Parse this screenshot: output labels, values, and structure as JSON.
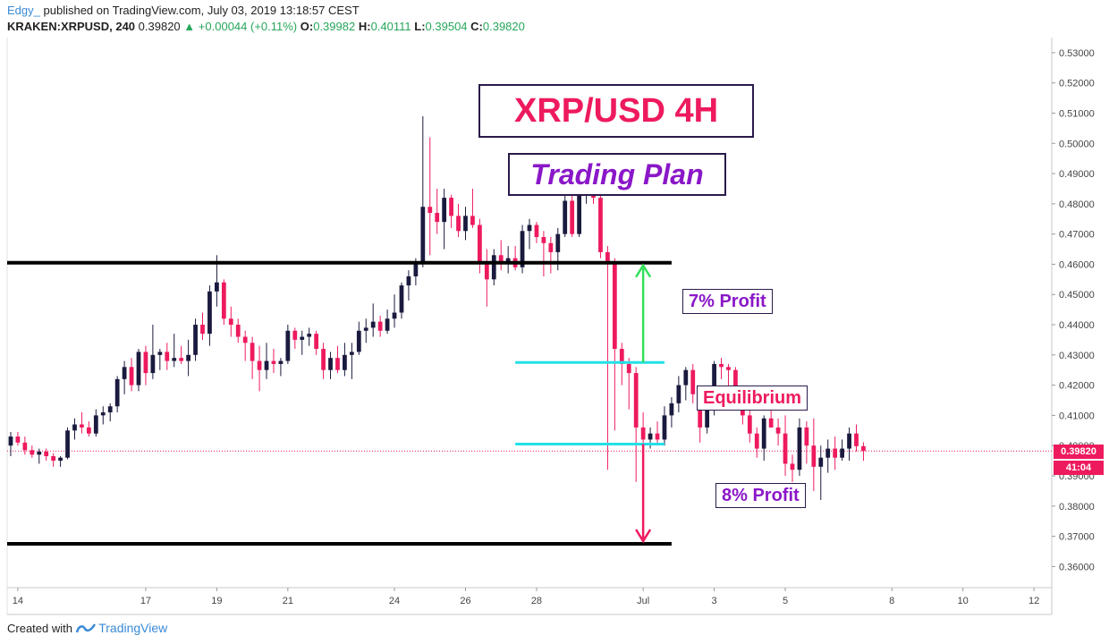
{
  "header": {
    "author": "Edgy_",
    "published": "published on TradingView.com, July 03, 2019 13:18:57 CEST",
    "symbol": "KRAKEN:XRPUSD, 240",
    "last": "0.39820",
    "change": "+0.00044 (+0.11%)",
    "o_label": "O:",
    "o": "0.39982",
    "h_label": "H:",
    "h": "0.40111",
    "l_label": "L:",
    "l": "0.39504",
    "c_label": "C:",
    "c": "0.39820"
  },
  "footer": {
    "created_with": "Created with",
    "brand": "TradingView"
  },
  "annotations": {
    "title": "XRP/USD 4H",
    "subtitle": "Trading Plan",
    "profit_top": "7% Profit",
    "equilibrium": "Equilibrium",
    "profit_bottom": "8% Profit"
  },
  "price_tag": {
    "price": "0.39820",
    "countdown": "41:04"
  },
  "colors": {
    "up_candle": "#1a1a3e",
    "down_candle": "#ee1a5e",
    "support_resistance": "#000000",
    "range_line": "#22e0e8",
    "target_up_arrow": "#33e05a",
    "target_down_arrow": "#ee1a5e"
  },
  "chart_data": {
    "type": "candlestick",
    "ylim": [
      0.353,
      0.535
    ],
    "y_ticks": [
      "0.36000",
      "0.37000",
      "0.38000",
      "0.39000",
      "0.40000",
      "0.41000",
      "0.42000",
      "0.43000",
      "0.44000",
      "0.45000",
      "0.46000",
      "0.47000",
      "0.48000",
      "0.49000",
      "0.50000",
      "0.51000",
      "0.52000",
      "0.53000"
    ],
    "x_ticks": [
      {
        "label": "14",
        "i": 1
      },
      {
        "label": "17",
        "i": 19
      },
      {
        "label": "19",
        "i": 29
      },
      {
        "label": "21",
        "i": 39
      },
      {
        "label": "24",
        "i": 54
      },
      {
        "label": "26",
        "i": 64
      },
      {
        "label": "28",
        "i": 74
      },
      {
        "label": "Jul",
        "i": 89
      },
      {
        "label": "3",
        "i": 99
      },
      {
        "label": "5",
        "i": 109
      },
      {
        "label": "8",
        "i": 124
      },
      {
        "label": "10",
        "i": 134
      },
      {
        "label": "12",
        "i": 144
      }
    ],
    "n_slots": 147,
    "levels": [
      {
        "name": "resistance",
        "y": 0.4605,
        "from_i": 0,
        "to_i": 93
      },
      {
        "name": "support",
        "y": 0.3675,
        "from_i": 0,
        "to_i": 93
      }
    ],
    "ranges": [
      {
        "name": "range-top",
        "y": 0.4275,
        "from_i": 71,
        "to_i": 92
      },
      {
        "name": "range-bottom",
        "y": 0.4005,
        "from_i": 71,
        "to_i": 92
      }
    ],
    "current_price": 0.3982,
    "candles": [
      {
        "o": 0.4,
        "h": 0.4045,
        "l": 0.3965,
        "c": 0.403
      },
      {
        "o": 0.403,
        "h": 0.4045,
        "l": 0.4,
        "c": 0.401
      },
      {
        "o": 0.401,
        "h": 0.403,
        "l": 0.397,
        "c": 0.3985
      },
      {
        "o": 0.3985,
        "h": 0.4,
        "l": 0.396,
        "c": 0.397
      },
      {
        "o": 0.397,
        "h": 0.399,
        "l": 0.394,
        "c": 0.398
      },
      {
        "o": 0.398,
        "h": 0.399,
        "l": 0.395,
        "c": 0.3965
      },
      {
        "o": 0.3965,
        "h": 0.3975,
        "l": 0.393,
        "c": 0.395
      },
      {
        "o": 0.395,
        "h": 0.3965,
        "l": 0.393,
        "c": 0.396
      },
      {
        "o": 0.396,
        "h": 0.406,
        "l": 0.3955,
        "c": 0.405
      },
      {
        "o": 0.405,
        "h": 0.409,
        "l": 0.402,
        "c": 0.407
      },
      {
        "o": 0.407,
        "h": 0.411,
        "l": 0.404,
        "c": 0.406
      },
      {
        "o": 0.406,
        "h": 0.408,
        "l": 0.403,
        "c": 0.404
      },
      {
        "o": 0.404,
        "h": 0.412,
        "l": 0.403,
        "c": 0.41
      },
      {
        "o": 0.41,
        "h": 0.413,
        "l": 0.407,
        "c": 0.411
      },
      {
        "o": 0.411,
        "h": 0.414,
        "l": 0.408,
        "c": 0.413
      },
      {
        "o": 0.413,
        "h": 0.423,
        "l": 0.411,
        "c": 0.422
      },
      {
        "o": 0.422,
        "h": 0.428,
        "l": 0.417,
        "c": 0.426
      },
      {
        "o": 0.426,
        "h": 0.429,
        "l": 0.418,
        "c": 0.42
      },
      {
        "o": 0.42,
        "h": 0.432,
        "l": 0.418,
        "c": 0.431
      },
      {
        "o": 0.431,
        "h": 0.433,
        "l": 0.42,
        "c": 0.424
      },
      {
        "o": 0.424,
        "h": 0.44,
        "l": 0.422,
        "c": 0.43
      },
      {
        "o": 0.43,
        "h": 0.432,
        "l": 0.425,
        "c": 0.431
      },
      {
        "o": 0.431,
        "h": 0.434,
        "l": 0.425,
        "c": 0.428
      },
      {
        "o": 0.428,
        "h": 0.437,
        "l": 0.426,
        "c": 0.429
      },
      {
        "o": 0.429,
        "h": 0.433,
        "l": 0.427,
        "c": 0.428
      },
      {
        "o": 0.428,
        "h": 0.435,
        "l": 0.423,
        "c": 0.43
      },
      {
        "o": 0.43,
        "h": 0.442,
        "l": 0.428,
        "c": 0.44
      },
      {
        "o": 0.44,
        "h": 0.444,
        "l": 0.435,
        "c": 0.437
      },
      {
        "o": 0.437,
        "h": 0.453,
        "l": 0.433,
        "c": 0.451
      },
      {
        "o": 0.451,
        "h": 0.463,
        "l": 0.446,
        "c": 0.454
      },
      {
        "o": 0.454,
        "h": 0.455,
        "l": 0.44,
        "c": 0.442
      },
      {
        "o": 0.442,
        "h": 0.446,
        "l": 0.436,
        "c": 0.44
      },
      {
        "o": 0.44,
        "h": 0.442,
        "l": 0.434,
        "c": 0.436
      },
      {
        "o": 0.436,
        "h": 0.438,
        "l": 0.428,
        "c": 0.434
      },
      {
        "o": 0.434,
        "h": 0.436,
        "l": 0.422,
        "c": 0.428
      },
      {
        "o": 0.428,
        "h": 0.433,
        "l": 0.418,
        "c": 0.425
      },
      {
        "o": 0.425,
        "h": 0.434,
        "l": 0.422,
        "c": 0.428
      },
      {
        "o": 0.428,
        "h": 0.432,
        "l": 0.424,
        "c": 0.427
      },
      {
        "o": 0.427,
        "h": 0.429,
        "l": 0.423,
        "c": 0.428
      },
      {
        "o": 0.428,
        "h": 0.44,
        "l": 0.427,
        "c": 0.438
      },
      {
        "o": 0.438,
        "h": 0.439,
        "l": 0.432,
        "c": 0.435
      },
      {
        "o": 0.435,
        "h": 0.438,
        "l": 0.43,
        "c": 0.436
      },
      {
        "o": 0.436,
        "h": 0.439,
        "l": 0.433,
        "c": 0.437
      },
      {
        "o": 0.437,
        "h": 0.438,
        "l": 0.43,
        "c": 0.432
      },
      {
        "o": 0.432,
        "h": 0.434,
        "l": 0.422,
        "c": 0.425
      },
      {
        "o": 0.425,
        "h": 0.431,
        "l": 0.422,
        "c": 0.429
      },
      {
        "o": 0.429,
        "h": 0.433,
        "l": 0.424,
        "c": 0.425
      },
      {
        "o": 0.425,
        "h": 0.434,
        "l": 0.423,
        "c": 0.43
      },
      {
        "o": 0.43,
        "h": 0.434,
        "l": 0.422,
        "c": 0.431
      },
      {
        "o": 0.431,
        "h": 0.441,
        "l": 0.43,
        "c": 0.438
      },
      {
        "o": 0.438,
        "h": 0.442,
        "l": 0.434,
        "c": 0.439
      },
      {
        "o": 0.439,
        "h": 0.447,
        "l": 0.436,
        "c": 0.441
      },
      {
        "o": 0.441,
        "h": 0.443,
        "l": 0.436,
        "c": 0.438
      },
      {
        "o": 0.438,
        "h": 0.445,
        "l": 0.437,
        "c": 0.442
      },
      {
        "o": 0.442,
        "h": 0.45,
        "l": 0.439,
        "c": 0.444
      },
      {
        "o": 0.444,
        "h": 0.454,
        "l": 0.442,
        "c": 0.453
      },
      {
        "o": 0.453,
        "h": 0.458,
        "l": 0.448,
        "c": 0.456
      },
      {
        "o": 0.456,
        "h": 0.462,
        "l": 0.453,
        "c": 0.46
      },
      {
        "o": 0.46,
        "h": 0.509,
        "l": 0.459,
        "c": 0.479
      },
      {
        "o": 0.479,
        "h": 0.502,
        "l": 0.463,
        "c": 0.477
      },
      {
        "o": 0.477,
        "h": 0.485,
        "l": 0.47,
        "c": 0.474
      },
      {
        "o": 0.474,
        "h": 0.485,
        "l": 0.465,
        "c": 0.482
      },
      {
        "o": 0.482,
        "h": 0.483,
        "l": 0.472,
        "c": 0.476
      },
      {
        "o": 0.476,
        "h": 0.48,
        "l": 0.469,
        "c": 0.471
      },
      {
        "o": 0.471,
        "h": 0.479,
        "l": 0.468,
        "c": 0.476
      },
      {
        "o": 0.476,
        "h": 0.485,
        "l": 0.472,
        "c": 0.473
      },
      {
        "o": 0.473,
        "h": 0.475,
        "l": 0.457,
        "c": 0.46
      },
      {
        "o": 0.46,
        "h": 0.465,
        "l": 0.446,
        "c": 0.455
      },
      {
        "o": 0.455,
        "h": 0.465,
        "l": 0.453,
        "c": 0.463
      },
      {
        "o": 0.463,
        "h": 0.468,
        "l": 0.458,
        "c": 0.46
      },
      {
        "o": 0.46,
        "h": 0.466,
        "l": 0.457,
        "c": 0.462
      },
      {
        "o": 0.462,
        "h": 0.466,
        "l": 0.458,
        "c": 0.459
      },
      {
        "o": 0.459,
        "h": 0.473,
        "l": 0.457,
        "c": 0.471
      },
      {
        "o": 0.471,
        "h": 0.475,
        "l": 0.465,
        "c": 0.473
      },
      {
        "o": 0.473,
        "h": 0.474,
        "l": 0.467,
        "c": 0.469
      },
      {
        "o": 0.469,
        "h": 0.471,
        "l": 0.456,
        "c": 0.467
      },
      {
        "o": 0.467,
        "h": 0.469,
        "l": 0.457,
        "c": 0.464
      },
      {
        "o": 0.464,
        "h": 0.472,
        "l": 0.458,
        "c": 0.47
      },
      {
        "o": 0.47,
        "h": 0.483,
        "l": 0.469,
        "c": 0.481
      },
      {
        "o": 0.481,
        "h": 0.485,
        "l": 0.469,
        "c": 0.47
      },
      {
        "o": 0.47,
        "h": 0.485,
        "l": 0.469,
        "c": 0.484
      },
      {
        "o": 0.484,
        "h": 0.495,
        "l": 0.48,
        "c": 0.49
      },
      {
        "o": 0.49,
        "h": 0.496,
        "l": 0.48,
        "c": 0.482
      },
      {
        "o": 0.482,
        "h": 0.483,
        "l": 0.462,
        "c": 0.464
      },
      {
        "o": 0.464,
        "h": 0.466,
        "l": 0.392,
        "c": 0.46
      },
      {
        "o": 0.46,
        "h": 0.462,
        "l": 0.405,
        "c": 0.432
      },
      {
        "o": 0.432,
        "h": 0.434,
        "l": 0.42,
        "c": 0.427
      },
      {
        "o": 0.427,
        "h": 0.429,
        "l": 0.412,
        "c": 0.424
      },
      {
        "o": 0.424,
        "h": 0.426,
        "l": 0.388,
        "c": 0.406
      },
      {
        "o": 0.406,
        "h": 0.411,
        "l": 0.393,
        "c": 0.402
      },
      {
        "o": 0.402,
        "h": 0.406,
        "l": 0.399,
        "c": 0.404
      },
      {
        "o": 0.404,
        "h": 0.408,
        "l": 0.4,
        "c": 0.402
      },
      {
        "o": 0.402,
        "h": 0.413,
        "l": 0.4,
        "c": 0.41
      },
      {
        "o": 0.41,
        "h": 0.416,
        "l": 0.406,
        "c": 0.414
      },
      {
        "o": 0.414,
        "h": 0.423,
        "l": 0.411,
        "c": 0.42
      },
      {
        "o": 0.42,
        "h": 0.426,
        "l": 0.415,
        "c": 0.425
      },
      {
        "o": 0.425,
        "h": 0.427,
        "l": 0.414,
        "c": 0.417
      },
      {
        "o": 0.417,
        "h": 0.419,
        "l": 0.401,
        "c": 0.406
      },
      {
        "o": 0.406,
        "h": 0.414,
        "l": 0.404,
        "c": 0.412
      },
      {
        "o": 0.412,
        "h": 0.428,
        "l": 0.41,
        "c": 0.427
      },
      {
        "o": 0.427,
        "h": 0.429,
        "l": 0.422,
        "c": 0.426
      },
      {
        "o": 0.426,
        "h": 0.427,
        "l": 0.418,
        "c": 0.425
      },
      {
        "o": 0.425,
        "h": 0.426,
        "l": 0.414,
        "c": 0.416
      },
      {
        "o": 0.416,
        "h": 0.418,
        "l": 0.407,
        "c": 0.41
      },
      {
        "o": 0.41,
        "h": 0.412,
        "l": 0.401,
        "c": 0.404
      },
      {
        "o": 0.404,
        "h": 0.406,
        "l": 0.396,
        "c": 0.399
      },
      {
        "o": 0.399,
        "h": 0.41,
        "l": 0.395,
        "c": 0.409
      },
      {
        "o": 0.409,
        "h": 0.419,
        "l": 0.406,
        "c": 0.406
      },
      {
        "o": 0.406,
        "h": 0.409,
        "l": 0.4,
        "c": 0.404
      },
      {
        "o": 0.404,
        "h": 0.41,
        "l": 0.39,
        "c": 0.394
      },
      {
        "o": 0.394,
        "h": 0.397,
        "l": 0.388,
        "c": 0.392
      },
      {
        "o": 0.392,
        "h": 0.409,
        "l": 0.39,
        "c": 0.406
      },
      {
        "o": 0.406,
        "h": 0.408,
        "l": 0.394,
        "c": 0.4
      },
      {
        "o": 0.4,
        "h": 0.409,
        "l": 0.385,
        "c": 0.393
      },
      {
        "o": 0.393,
        "h": 0.4,
        "l": 0.382,
        "c": 0.396
      },
      {
        "o": 0.396,
        "h": 0.402,
        "l": 0.391,
        "c": 0.399
      },
      {
        "o": 0.399,
        "h": 0.403,
        "l": 0.392,
        "c": 0.396
      },
      {
        "o": 0.396,
        "h": 0.402,
        "l": 0.395,
        "c": 0.399
      },
      {
        "o": 0.399,
        "h": 0.406,
        "l": 0.395,
        "c": 0.404
      },
      {
        "o": 0.404,
        "h": 0.407,
        "l": 0.398,
        "c": 0.3998
      },
      {
        "o": 0.3998,
        "h": 0.4011,
        "l": 0.395,
        "c": 0.3982
      }
    ]
  }
}
